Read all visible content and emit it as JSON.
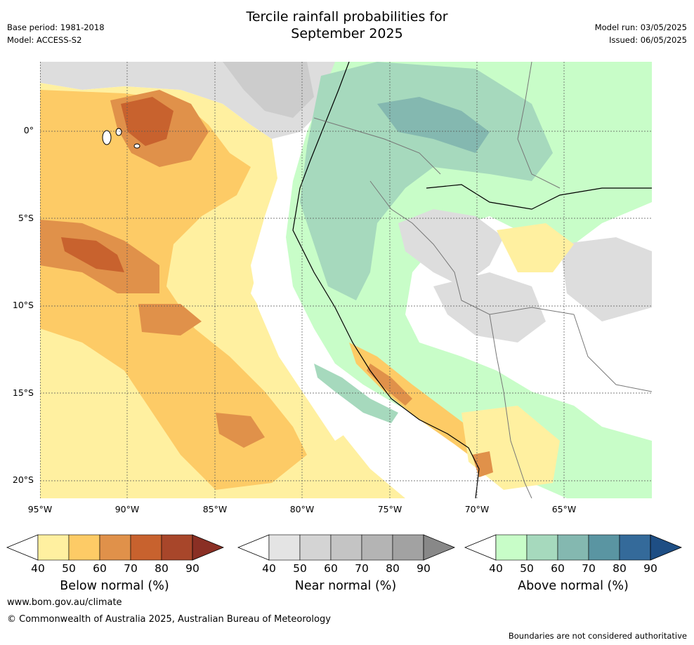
{
  "header": {
    "title_line1": "Tercile rainfall probabilities for",
    "title_line2": "September 2025",
    "base_period": "Base period: 1981-2018",
    "model": "Model: ACCESS-S2",
    "model_run": "Model run: 03/05/2025",
    "issued": "Issued: 06/05/2025"
  },
  "map_axes": {
    "lat_labels": [
      "0°",
      "5°S",
      "10°S",
      "15°S",
      "20°S"
    ],
    "lon_labels": [
      "95°W",
      "90°W",
      "85°W",
      "80°W",
      "75°W",
      "70°W",
      "65°W"
    ],
    "lat_range": [
      -21,
      4
    ],
    "lon_range": [
      -95,
      -60
    ]
  },
  "legend": {
    "ticks": [
      "40",
      "50",
      "60",
      "70",
      "80",
      "90"
    ],
    "below": {
      "label": "Below normal (%)",
      "colors": [
        "#fff0a0",
        "#fdcb66",
        "#e0914a",
        "#c8622e",
        "#a8462a",
        "#8a2f24"
      ]
    },
    "near": {
      "label": "Near normal (%)",
      "colors": [
        "#e4e4e4",
        "#d4d4d4",
        "#c4c4c4",
        "#b4b4b4",
        "#a2a2a2",
        "#888888"
      ]
    },
    "above": {
      "label": "Above normal (%)",
      "colors": [
        "#c8fdc8",
        "#a6d9bd",
        "#84b8b0",
        "#5a95a2",
        "#346a9a",
        "#1e4e84"
      ]
    }
  },
  "footer": {
    "website": "www.bom.gov.au/climate",
    "copyright": "© Commonwealth of Australia 2025, Australian Bureau of Meteorology",
    "disclaimer": "Boundaries are not considered authoritative"
  }
}
